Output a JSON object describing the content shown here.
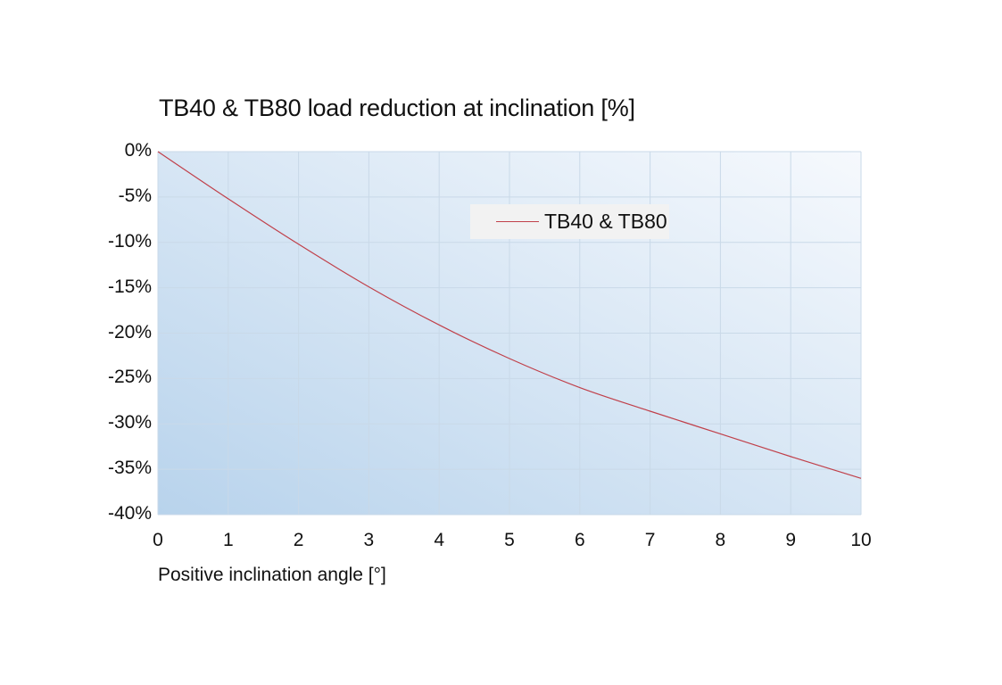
{
  "chart_data": {
    "type": "line",
    "title": "TB40 & TB80 load reduction at inclination [%]",
    "xlabel": "Positive inclination angle [°]",
    "ylabel": "",
    "x": [
      0,
      1,
      2,
      3,
      4,
      5,
      6,
      7,
      8,
      9,
      10
    ],
    "series": [
      {
        "name": "TB40 & TB80",
        "color": "#c0404a",
        "values": [
          0,
          -5.2,
          -10.2,
          -14.9,
          -19.1,
          -22.8,
          -26.0,
          -28.6,
          -31.1,
          -33.6,
          -36.0
        ]
      }
    ],
    "xlim": [
      0,
      10
    ],
    "ylim": [
      -40,
      0
    ],
    "x_ticks": [
      "0",
      "1",
      "2",
      "3",
      "4",
      "5",
      "6",
      "7",
      "8",
      "9",
      "10"
    ],
    "y_ticks": [
      "0%",
      "-5%",
      "-10%",
      "-15%",
      "-20%",
      "-25%",
      "-30%",
      "-35%",
      "-40%"
    ],
    "grid": true,
    "legend_position": "upper-center-right",
    "background_gradient": {
      "from": "#b8d3ec",
      "to": "#f6f9fd"
    }
  }
}
